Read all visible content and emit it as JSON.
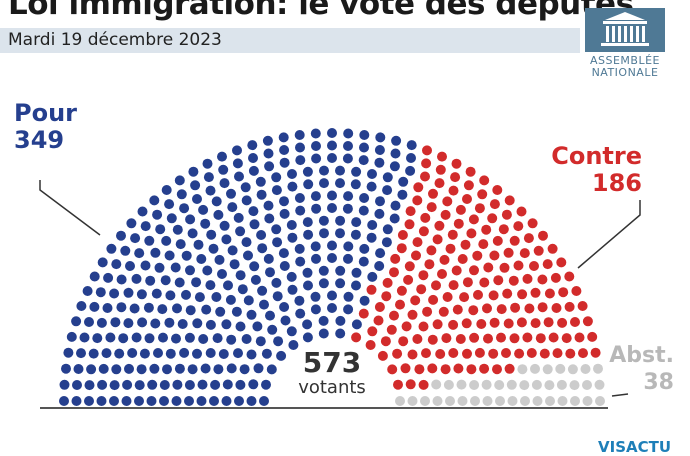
{
  "header": {
    "title": "Loi immigration: le vote des députés",
    "subtitle": "Mardi 19 décembre 2023"
  },
  "logo": {
    "line1": "ASSEMBLÉE",
    "line2": "NATIONALE"
  },
  "brand": "VISACTU",
  "chart_data": {
    "type": "parliament",
    "title": "Loi immigration: le vote des députés",
    "total": 573,
    "total_label": "votants",
    "series": [
      {
        "name": "Pour",
        "value": 349,
        "color": "#253f8e"
      },
      {
        "name": "Contre",
        "value": 186,
        "color": "#d22b2b"
      },
      {
        "name": "Abst.",
        "value": 38,
        "color": "#cccccc"
      }
    ]
  }
}
